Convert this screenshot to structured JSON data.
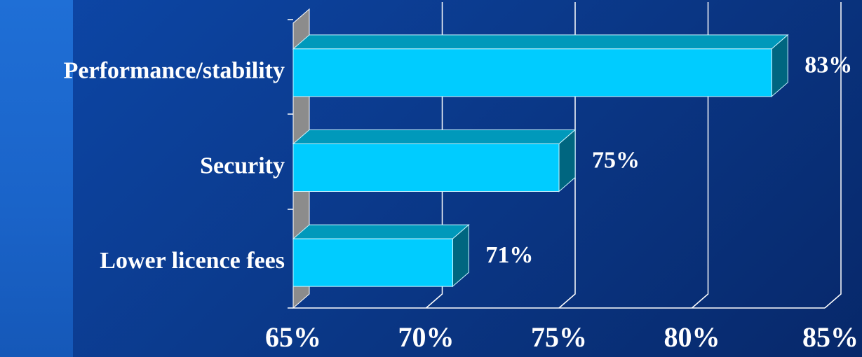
{
  "chart_data": {
    "type": "bar",
    "orientation": "horizontal",
    "style": "3d",
    "categories": [
      "Performance/stability",
      "Security",
      "Lower licence fees"
    ],
    "values": [
      83,
      75,
      71
    ],
    "data_labels": [
      "83%",
      "75%",
      "71%"
    ],
    "xlim": [
      65,
      85
    ],
    "x_ticks": [
      65,
      70,
      75,
      80,
      85
    ],
    "x_tick_labels": [
      "65%",
      "70%",
      "75%",
      "80%",
      "85%"
    ],
    "grid": true,
    "legend": "none",
    "title": "",
    "xlabel": "",
    "ylabel": ""
  },
  "colors": {
    "background": "#0b3a8c",
    "side_strip": "#1a63c8",
    "bar_front": "#00ccff",
    "bar_top": "#0099bb",
    "bar_side": "#006680",
    "wall": "#8c8c8c",
    "gridline": "#ffffff",
    "text": "#ffffff"
  }
}
